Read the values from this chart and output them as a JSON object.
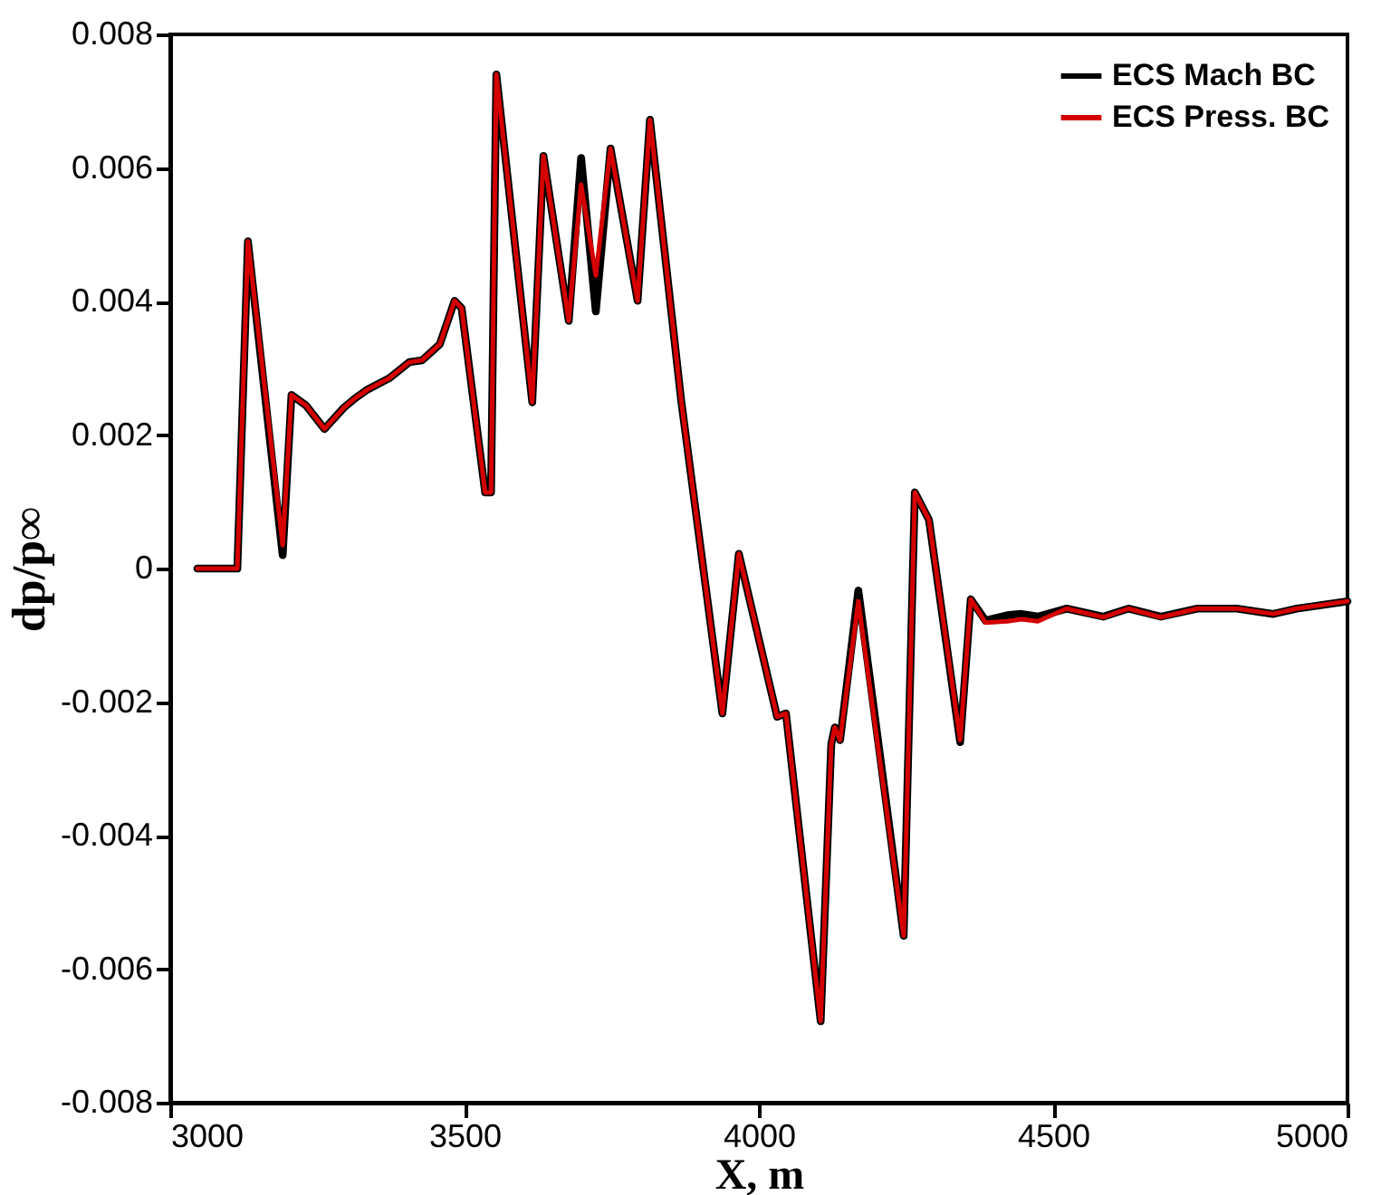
{
  "chart_data": {
    "type": "line",
    "xlabel": "X, m",
    "ylabel": "dp/p∞",
    "x": [
      3046,
      3114,
      3132,
      3191,
      3206,
      3231,
      3262,
      3295,
      3314,
      3335,
      3372,
      3406,
      3428,
      3458,
      3483,
      3495,
      3535,
      3545,
      3554,
      3615,
      3634,
      3677,
      3698,
      3723,
      3748,
      3794,
      3815,
      3868,
      3938,
      3966,
      4031,
      4046,
      4105,
      4123,
      4129,
      4138,
      4169,
      4246,
      4265,
      4289,
      4342,
      4360,
      4385,
      4422,
      4446,
      4474,
      4523,
      4585,
      4628,
      4683,
      4745,
      4812,
      4874,
      4914,
      5000
    ],
    "series": [
      {
        "name": "ECS Mach BC",
        "color": "#000000",
        "values": [
          0,
          0,
          0.0049,
          0.0002,
          0.0026,
          0.00244,
          0.00209,
          0.00241,
          0.00255,
          0.00268,
          0.00285,
          0.00309,
          0.00312,
          0.00336,
          0.00401,
          0.0039,
          0.00114,
          0.00114,
          0.0074,
          0.00249,
          0.00618,
          0.00371,
          0.00615,
          0.00385,
          0.00629,
          0.00401,
          0.00672,
          0.00252,
          -0.00217,
          0.00022,
          -0.00222,
          -0.00217,
          -0.00678,
          -0.00263,
          -0.00238,
          -0.00257,
          -0.00033,
          -0.0055,
          0.00114,
          0.00073,
          -0.0026,
          -0.00046,
          -0.00078,
          -0.0007,
          -0.00068,
          -0.00072,
          -0.0006,
          -0.00072,
          -0.0006,
          -0.00072,
          -0.0006,
          -0.0006,
          -0.00068,
          -0.0006,
          -0.00049
        ]
      },
      {
        "name": "ECS Press. BC",
        "color": "#d40000",
        "values": [
          0,
          0,
          0.0049,
          0.00035,
          0.0026,
          0.00244,
          0.00209,
          0.00241,
          0.00255,
          0.00268,
          0.00285,
          0.00309,
          0.00312,
          0.00336,
          0.00401,
          0.0039,
          0.00114,
          0.00114,
          0.0074,
          0.00249,
          0.00618,
          0.00371,
          0.00575,
          0.00439,
          0.00629,
          0.00401,
          0.00672,
          0.00252,
          -0.00217,
          0.00022,
          -0.00222,
          -0.00217,
          -0.00678,
          -0.00263,
          -0.00238,
          -0.00257,
          -0.00049,
          -0.0055,
          0.00114,
          0.00073,
          -0.00257,
          -0.00046,
          -0.00081,
          -0.00079,
          -0.00076,
          -0.00079,
          -0.0006,
          -0.00073,
          -0.0006,
          -0.00073,
          -0.0006,
          -0.0006,
          -0.00068,
          -0.0006,
          -0.00049
        ]
      }
    ],
    "xlim": [
      3000,
      5000
    ],
    "xticks": [
      3000,
      3500,
      4000,
      4500,
      5000
    ],
    "ylim": [
      -0.008,
      0.008
    ],
    "yticks": [
      -0.008,
      -0.006,
      -0.004,
      -0.002,
      0,
      0.002,
      0.004,
      0.006,
      0.008
    ],
    "legend": "top right",
    "grid": false,
    "marker": "none",
    "line_style": "solid"
  }
}
